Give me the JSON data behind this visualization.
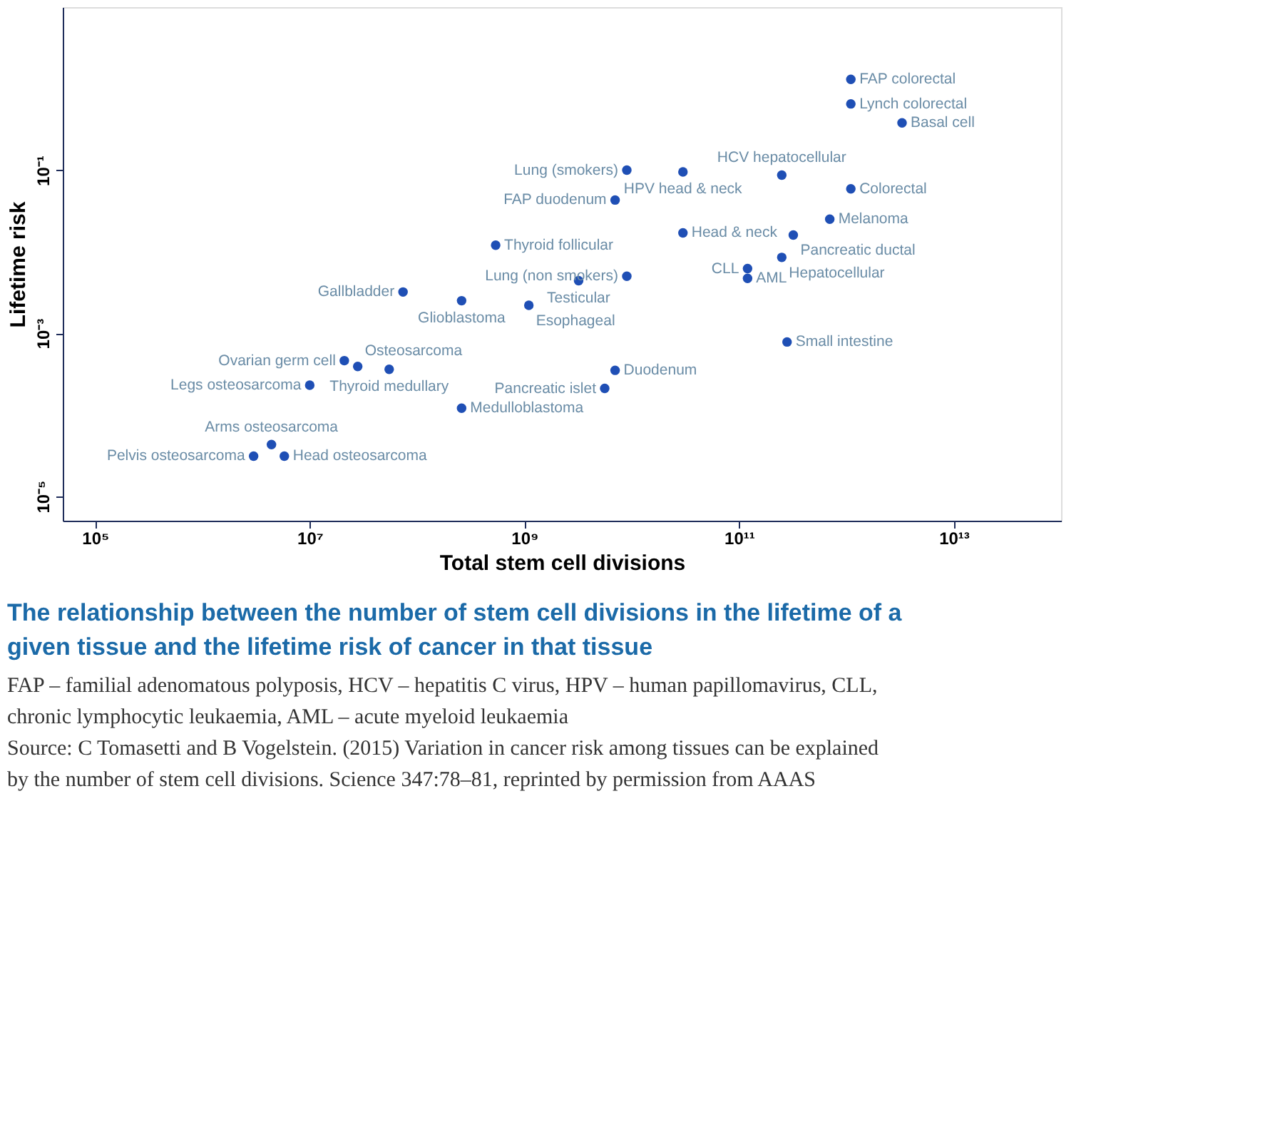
{
  "chart_data": {
    "type": "scatter",
    "title": "The relationship between the number of stem cell divisions in the lifetime of a given tissue and the lifetime risk of cancer in that tissue",
    "xlabel": "Total stem cell divisions",
    "ylabel": "Lifetime risk",
    "log": "xy",
    "xlim": [
      50000.0,
      100000000000000.0
    ],
    "ylim": [
      5e-06,
      10
    ],
    "xticks": [
      {
        "value": 100000.0,
        "label": "10⁵"
      },
      {
        "value": 10000000.0,
        "label": "10⁷"
      },
      {
        "value": 1000000000.0,
        "label": "10⁹"
      },
      {
        "value": 100000000000.0,
        "label": "10¹¹"
      },
      {
        "value": 10000000000000.0,
        "label": "10¹³"
      }
    ],
    "yticks": [
      {
        "value": 0.1,
        "label": "10⁻¹"
      },
      {
        "value": 0.001,
        "label": "10⁻³"
      },
      {
        "value": 1e-05,
        "label": "10⁻⁵"
      }
    ],
    "grid": false,
    "legend": false,
    "marker": "circle",
    "series": [
      {
        "color": "#1f4fb5",
        "x": [
          1100000000000.0,
          1100000000000.0,
          3300000000000.0,
          9000000000.0,
          30000000000.0,
          250000000000.0,
          1100000000000.0,
          7000000000.0,
          700000000000.0,
          30000000000.0,
          320000000000.0,
          540000000.0,
          250000000000.0,
          120000000000.0,
          120000000000.0,
          9000000000.0,
          3200000000.0,
          74000000.0,
          260000000.0,
          1100000000.0,
          280000000000.0,
          21000000.0,
          28000000.0,
          55000000.0,
          7000000000.0,
          5600000000.0,
          10000000.0,
          260000000.0,
          4400000.0,
          3000000.0,
          5800000.0
        ],
        "values": [
          1.3,
          0.65,
          0.38,
          0.1,
          0.095,
          0.087,
          0.059,
          0.043,
          0.025,
          0.017,
          0.016,
          0.012,
          0.0085,
          0.0062,
          0.0047,
          0.005,
          0.0044,
          0.0032,
          0.0025,
          0.0022,
          0.00078,
          0.00046,
          0.00039,
          0.00036,
          0.00035,
          0.00021,
          0.00023,
          0.00012,
          4.3e-05,
          3.1e-05,
          3.1e-05
        ]
      }
    ],
    "annotations": [
      {
        "text": "FAP colorectal",
        "x": 1100000000000.0,
        "y": 1.3
      },
      {
        "text": "Lynch colorectal",
        "x": 1100000000000.0,
        "y": 0.65
      },
      {
        "text": "Basal cell",
        "x": 3300000000000.0,
        "y": 0.38
      },
      {
        "text": "Lung (smokers)",
        "x": 9000000000.0,
        "y": 0.1
      },
      {
        "text": "HPV head & neck",
        "x": 30000000000.0,
        "y": 0.095
      },
      {
        "text": "HCV hepatocellular",
        "x": 250000000000.0,
        "y": 0.087
      },
      {
        "text": "Colorectal",
        "x": 1100000000000.0,
        "y": 0.059
      },
      {
        "text": "FAP duodenum",
        "x": 7000000000.0,
        "y": 0.043
      },
      {
        "text": "Melanoma",
        "x": 700000000000.0,
        "y": 0.025
      },
      {
        "text": "Head & neck",
        "x": 30000000000.0,
        "y": 0.017
      },
      {
        "text": "Pancreatic ductal",
        "x": 320000000000.0,
        "y": 0.016
      },
      {
        "text": "Thyroid follicular",
        "x": 540000000.0,
        "y": 0.012
      },
      {
        "text": "Hepatocellular",
        "x": 250000000000.0,
        "y": 0.0085
      },
      {
        "text": "CLL",
        "x": 120000000000.0,
        "y": 0.0062
      },
      {
        "text": "AML",
        "x": 120000000000.0,
        "y": 0.0047
      },
      {
        "text": "Lung (non smokers)",
        "x": 9000000000.0,
        "y": 0.005
      },
      {
        "text": "Testicular",
        "x": 3200000000.0,
        "y": 0.0044
      },
      {
        "text": "Gallbladder",
        "x": 74000000.0,
        "y": 0.0032
      },
      {
        "text": "Glioblastoma",
        "x": 260000000.0,
        "y": 0.0025
      },
      {
        "text": "Esophageal",
        "x": 1100000000.0,
        "y": 0.0022
      },
      {
        "text": "Small intestine",
        "x": 280000000000.0,
        "y": 0.00078
      },
      {
        "text": "Ovarian germ cell",
        "x": 21000000.0,
        "y": 0.00046
      },
      {
        "text": "Osteosarcoma",
        "x": 28000000.0,
        "y": 0.00039
      },
      {
        "text": "Thyroid medullary",
        "x": 55000000.0,
        "y": 0.00036
      },
      {
        "text": "Duodenum",
        "x": 7000000000.0,
        "y": 0.00035
      },
      {
        "text": "Pancreatic islet",
        "x": 5600000000.0,
        "y": 0.00021
      },
      {
        "text": "Legs osteosarcoma",
        "x": 10000000.0,
        "y": 0.00023
      },
      {
        "text": "Medulloblastoma",
        "x": 260000000.0,
        "y": 0.00012
      },
      {
        "text": "Arms osteosarcoma",
        "x": 4400000.0,
        "y": 4.3e-05
      },
      {
        "text": "Pelvis osteosarcoma",
        "x": 3000000.0,
        "y": 3.1e-05
      },
      {
        "text": "Head osteosarcoma",
        "x": 5800000.0,
        "y": 3.1e-05
      },
      "FAP – familial adenomatous polyposis, HCV – hepatitis C virus, HPV – human papillomavirus, CLL, chronic lymphocytic leukaemia, AML – acute myeloid leukaemia",
      "Source: C Tomasetti and B Vogelstein. (2015) Variation in cancer risk among tissues can be explained by the number of stem cell divisions. Science 347:78–81, reprinted by permission from AAAS"
    ]
  }
}
